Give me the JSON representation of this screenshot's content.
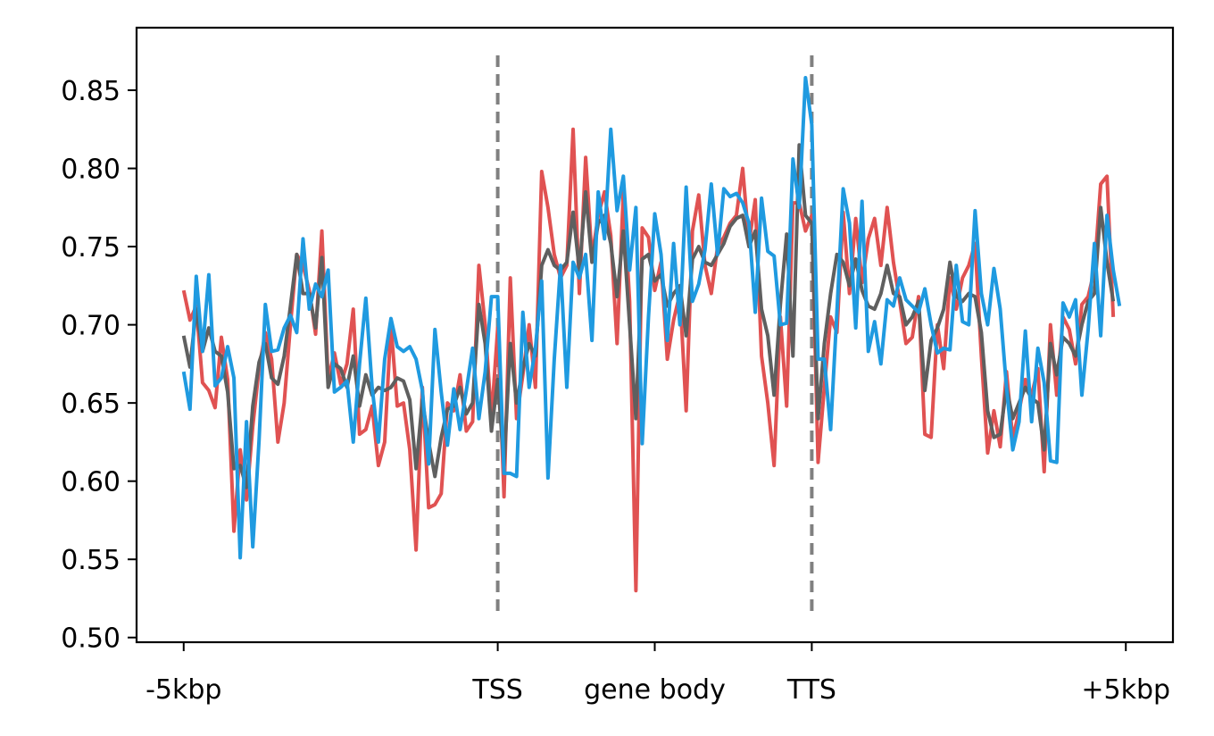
{
  "chart_data": {
    "type": "line",
    "title": "",
    "xlabel": "",
    "ylabel": "",
    "x_ticks": [
      "-5kbp",
      "TSS",
      "gene body",
      "TTS",
      "+5kbp"
    ],
    "x_tick_positions": [
      0,
      50,
      75,
      100,
      150
    ],
    "x_range": [
      -7.5,
      157.5
    ],
    "vertical_markers": [
      {
        "x": 50,
        "style": "dashed",
        "color": "#808080"
      },
      {
        "x": 100,
        "style": "dashed",
        "color": "#808080"
      }
    ],
    "ylim": [
      0.497,
      0.89
    ],
    "y_ticks": [
      "0.50",
      "0.55",
      "0.60",
      "0.65",
      "0.70",
      "0.75",
      "0.80",
      "0.85"
    ],
    "y_tick_values": [
      0.5,
      0.55,
      0.6,
      0.65,
      0.7,
      0.75,
      0.8,
      0.85
    ],
    "grid": false,
    "legend": "none",
    "series": [
      {
        "color": "#e05252",
        "values": [
          0.722,
          0.703,
          0.712,
          0.663,
          0.658,
          0.647,
          0.692,
          0.665,
          0.568,
          0.62,
          0.588,
          0.635,
          0.672,
          0.695,
          0.678,
          0.625,
          0.65,
          0.7,
          0.745,
          0.738,
          0.722,
          0.694,
          0.76,
          0.665,
          0.682,
          0.662,
          0.675,
          0.71,
          0.63,
          0.633,
          0.648,
          0.61,
          0.625,
          0.7,
          0.648,
          0.65,
          0.62,
          0.556,
          0.66,
          0.583,
          0.585,
          0.592,
          0.65,
          0.645,
          0.668,
          0.632,
          0.638,
          0.738,
          0.7,
          0.64,
          0.698,
          0.59,
          0.73,
          0.64,
          0.668,
          0.7,
          0.66,
          0.798,
          0.775,
          0.745,
          0.73,
          0.738,
          0.825,
          0.72,
          0.807,
          0.743,
          0.77,
          0.785,
          0.757,
          0.688,
          0.785,
          0.715,
          0.53,
          0.762,
          0.756,
          0.722,
          0.74,
          0.678,
          0.703,
          0.72,
          0.645,
          0.76,
          0.783,
          0.738,
          0.72,
          0.75,
          0.756,
          0.765,
          0.77,
          0.8,
          0.752,
          0.78,
          0.68,
          0.65,
          0.61,
          0.705,
          0.648,
          0.778,
          0.778,
          0.76,
          0.77,
          0.612,
          0.66,
          0.705,
          0.695,
          0.772,
          0.72,
          0.768,
          0.727,
          0.755,
          0.768,
          0.738,
          0.775,
          0.74,
          0.715,
          0.688,
          0.692,
          0.718,
          0.63,
          0.628,
          0.7,
          0.672,
          0.73,
          0.71,
          0.73,
          0.738,
          0.752,
          0.68,
          0.618,
          0.645,
          0.622,
          0.67,
          0.627,
          0.645,
          0.665,
          0.655,
          0.672,
          0.606,
          0.7,
          0.655,
          0.705,
          0.697,
          0.675,
          0.713,
          0.718,
          0.735,
          0.79,
          0.795,
          0.705
        ],
        "x_start": 0
      },
      {
        "color": "#5f5f5f",
        "values": [
          0.693,
          0.673,
          0.71,
          0.683,
          0.698,
          0.683,
          0.68,
          0.657,
          0.608,
          0.61,
          0.596,
          0.648,
          0.676,
          0.688,
          0.666,
          0.662,
          0.68,
          0.712,
          0.745,
          0.72,
          0.72,
          0.698,
          0.743,
          0.66,
          0.675,
          0.672,
          0.66,
          0.68,
          0.648,
          0.668,
          0.655,
          0.66,
          0.658,
          0.66,
          0.666,
          0.664,
          0.652,
          0.608,
          0.652,
          0.625,
          0.603,
          0.628,
          0.646,
          0.648,
          0.66,
          0.643,
          0.65,
          0.713,
          0.688,
          0.632,
          0.665,
          0.61,
          0.688,
          0.65,
          0.672,
          0.688,
          0.68,
          0.738,
          0.748,
          0.738,
          0.735,
          0.74,
          0.772,
          0.735,
          0.785,
          0.74,
          0.765,
          0.77,
          0.752,
          0.718,
          0.76,
          0.7,
          0.64,
          0.742,
          0.745,
          0.728,
          0.732,
          0.712,
          0.72,
          0.725,
          0.693,
          0.742,
          0.75,
          0.74,
          0.738,
          0.745,
          0.752,
          0.763,
          0.768,
          0.77,
          0.75,
          0.76,
          0.71,
          0.693,
          0.655,
          0.713,
          0.758,
          0.68,
          0.815,
          0.77,
          0.765,
          0.64,
          0.688,
          0.72,
          0.745,
          0.74,
          0.725,
          0.742,
          0.722,
          0.712,
          0.71,
          0.72,
          0.738,
          0.72,
          0.718,
          0.7,
          0.705,
          0.715,
          0.658,
          0.69,
          0.698,
          0.71,
          0.74,
          0.718,
          0.715,
          0.72,
          0.718,
          0.695,
          0.645,
          0.628,
          0.63,
          0.66,
          0.64,
          0.65,
          0.66,
          0.653,
          0.65,
          0.62,
          0.688,
          0.668,
          0.692,
          0.688,
          0.68,
          0.7,
          0.715,
          0.72,
          0.775,
          0.74,
          0.715
        ],
        "x_start": 0
      },
      {
        "color": "#1f9ae0",
        "values": [
          0.67,
          0.646,
          0.731,
          0.683,
          0.732,
          0.661,
          0.666,
          0.686,
          0.666,
          0.551,
          0.638,
          0.558,
          0.626,
          0.713,
          0.683,
          0.684,
          0.698,
          0.706,
          0.695,
          0.755,
          0.71,
          0.726,
          0.718,
          0.735,
          0.657,
          0.66,
          0.664,
          0.625,
          0.675,
          0.717,
          0.66,
          0.625,
          0.678,
          0.704,
          0.686,
          0.683,
          0.686,
          0.678,
          0.658,
          0.611,
          0.697,
          0.657,
          0.623,
          0.659,
          0.633,
          0.658,
          0.685,
          0.64,
          0.67,
          0.718,
          0.718,
          0.605,
          0.605,
          0.603,
          0.708,
          0.66,
          0.685,
          0.728,
          0.602,
          0.678,
          0.738,
          0.66,
          0.74,
          0.73,
          0.745,
          0.69,
          0.785,
          0.755,
          0.825,
          0.773,
          0.795,
          0.735,
          0.775,
          0.624,
          0.705,
          0.771,
          0.745,
          0.69,
          0.752,
          0.7,
          0.788,
          0.715,
          0.726,
          0.748,
          0.79,
          0.745,
          0.787,
          0.782,
          0.784,
          0.778,
          0.765,
          0.708,
          0.781,
          0.747,
          0.744,
          0.7,
          0.701,
          0.806,
          0.775,
          0.858,
          0.828,
          0.678,
          0.678,
          0.633,
          0.708,
          0.787,
          0.765,
          0.698,
          0.779,
          0.683,
          0.702,
          0.675,
          0.716,
          0.712,
          0.73,
          0.716,
          0.712,
          0.708,
          0.723,
          0.7,
          0.682,
          0.685,
          0.684,
          0.738,
          0.702,
          0.7,
          0.773,
          0.72,
          0.7,
          0.736,
          0.71,
          0.66,
          0.62,
          0.638,
          0.696,
          0.638,
          0.685,
          0.663,
          0.613,
          0.612,
          0.714,
          0.705,
          0.716,
          0.655,
          0.697,
          0.752,
          0.693,
          0.77,
          0.735,
          0.712
        ],
        "x_start": 0
      }
    ]
  }
}
